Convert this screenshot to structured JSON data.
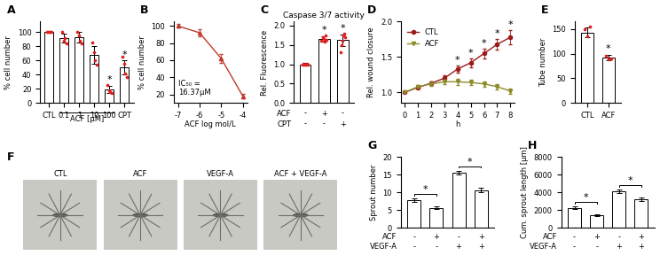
{
  "chart_data": [
    {
      "panel": "A",
      "type": "bar",
      "categories": [
        "CTL",
        "0.1",
        "1",
        "10",
        "100",
        "CPT"
      ],
      "values": [
        100,
        92,
        93,
        68,
        19,
        50
      ],
      "errors": [
        0,
        6,
        7,
        12,
        5,
        10
      ],
      "points": {
        "color": "#e02020",
        "values": [
          [
            100,
            100,
            100,
            100
          ],
          [
            100,
            88,
            92,
            84
          ],
          [
            100,
            95,
            88,
            84
          ],
          [
            85,
            72,
            60,
            54
          ],
          [
            25,
            18,
            15,
            14
          ],
          [
            65,
            55,
            42,
            37
          ]
        ]
      },
      "significance": [
        null,
        null,
        null,
        null,
        "*",
        "*"
      ],
      "color": "#ffffff",
      "ylim": [
        0,
        115
      ],
      "yticks": [
        0,
        20,
        40,
        60,
        80,
        100
      ],
      "y_label": "% cell number",
      "group_label": {
        "text": "ACF [µM]",
        "from": 1,
        "to": 4
      }
    },
    {
      "panel": "B",
      "type": "line",
      "x": [
        -7,
        -6,
        -5,
        -4
      ],
      "values": [
        100,
        92,
        62,
        18
      ],
      "errors": [
        2,
        4,
        5,
        3
      ],
      "color": "#c0392b",
      "marker": "triangle",
      "xlim": [
        -7.2,
        -3.8
      ],
      "xticks": [
        -7,
        -6,
        -5,
        -4
      ],
      "ylim": [
        10,
        105
      ],
      "yticks": [
        20,
        40,
        60,
        80,
        100
      ],
      "x_label": "ACF log mol/L",
      "y_label": "% cell number",
      "annotation": "IC₅₀ =\n16.37µM"
    },
    {
      "panel": "C",
      "type": "bar",
      "title": "Caspase 3/7 activity",
      "categories": [
        null,
        null,
        null
      ],
      "values": [
        1.0,
        1.65,
        1.62
      ],
      "errors": [
        0.03,
        0.07,
        0.15
      ],
      "points": {
        "color": "#e02020",
        "values": [
          [
            1.0,
            1.02,
            0.98,
            1.0,
            1.01,
            0.99
          ],
          [
            1.6,
            1.7,
            1.65,
            1.58,
            1.75,
            1.62
          ],
          [
            1.3,
            1.5,
            1.6,
            1.75,
            1.8,
            1.7
          ]
        ]
      },
      "significance": [
        null,
        "*",
        "*"
      ],
      "color": "#ffffff",
      "conditions": [
        {
          "name": "ACF",
          "values": [
            "-",
            "+",
            "-"
          ]
        },
        {
          "name": "CPT",
          "values": [
            "-",
            "-",
            "+"
          ]
        }
      ],
      "ylim": [
        0,
        2.1
      ],
      "yticks": [
        0.0,
        0.5,
        1.0,
        1.5,
        2.0
      ],
      "y_label": "Rel. Fluorescence"
    },
    {
      "panel": "D",
      "type": "line",
      "x": [
        0,
        1,
        2,
        3,
        4,
        5,
        6,
        7,
        8
      ],
      "series": [
        {
          "name": "CTL",
          "color": "#9b1b1b",
          "marker": "circle",
          "values": [
            1.0,
            1.07,
            1.13,
            1.2,
            1.33,
            1.42,
            1.55,
            1.68,
            1.78
          ],
          "errors": [
            0,
            0.02,
            0.03,
            0.04,
            0.05,
            0.06,
            0.07,
            0.08,
            0.1
          ],
          "significance": [
            null,
            null,
            null,
            null,
            "*",
            "*",
            "*",
            "*",
            "*"
          ]
        },
        {
          "name": "ACF",
          "color": "#8c8c2a",
          "marker": "triangle_down",
          "values": [
            1.0,
            1.08,
            1.12,
            1.15,
            1.15,
            1.14,
            1.12,
            1.08,
            1.02
          ],
          "errors": [
            0,
            0.02,
            0.03,
            0.03,
            0.04,
            0.04,
            0.04,
            0.04,
            0.04
          ]
        }
      ],
      "xlim": [
        -0.3,
        8.3
      ],
      "xticks": [
        0,
        1,
        2,
        3,
        4,
        5,
        6,
        7,
        8
      ],
      "ylim": [
        0.85,
        2.0
      ],
      "yticks": [
        1.0,
        1.5,
        2.0
      ],
      "x_label": "h",
      "y_label": "Rel. wound closure",
      "legend": "upper left"
    },
    {
      "panel": "E",
      "type": "bar",
      "categories": [
        "CTL",
        "ACF"
      ],
      "values": [
        143,
        92
      ],
      "errors": [
        10,
        6
      ],
      "points": {
        "color": "#e02020",
        "values": [
          [
            150,
            135,
            155
          ],
          [
            95,
            88,
            90
          ]
        ]
      },
      "significance": [
        null,
        "*"
      ],
      "color": "#ffffff",
      "ylim": [
        0,
        165
      ],
      "yticks": [
        0,
        50,
        100,
        150
      ],
      "y_label": "Tube number"
    },
    {
      "panel": "G",
      "type": "bar",
      "categories": [
        null,
        null,
        null,
        null
      ],
      "values": [
        7.8,
        5.6,
        15.6,
        10.6
      ],
      "errors": [
        0.5,
        0.4,
        0.6,
        0.6
      ],
      "color": "#ffffff",
      "brackets": [
        {
          "between": [
            0,
            1
          ],
          "label": "*"
        },
        {
          "between": [
            2,
            3
          ],
          "label": "*"
        }
      ],
      "conditions": [
        {
          "name": "ACF",
          "values": [
            "-",
            "+",
            "-",
            "+"
          ]
        },
        {
          "name": "VEGF-A",
          "values": [
            "-",
            "-",
            "+",
            "+"
          ]
        }
      ],
      "ylim": [
        0,
        20
      ],
      "yticks": [
        0,
        5,
        10,
        15,
        20
      ],
      "y_label": "Sprout number"
    },
    {
      "panel": "H",
      "type": "bar",
      "categories": [
        null,
        null,
        null,
        null
      ],
      "values": [
        2250,
        1400,
        4150,
        3200
      ],
      "errors": [
        150,
        100,
        200,
        200
      ],
      "color": "#ffffff",
      "brackets": [
        {
          "between": [
            0,
            1
          ],
          "label": "*"
        },
        {
          "between": [
            2,
            3
          ],
          "label": "*"
        }
      ],
      "conditions": [
        {
          "name": "ACF",
          "values": [
            "-",
            "+",
            "-",
            "+"
          ]
        },
        {
          "name": "VEGF-A",
          "values": [
            "-",
            "-",
            "+",
            "+"
          ]
        }
      ],
      "ylim": [
        0,
        8000
      ],
      "yticks": [
        0,
        2000,
        4000,
        6000,
        8000
      ],
      "y_label": "Cum. sprout length [µm]"
    }
  ],
  "image_panel": {
    "panel": "F",
    "labels": [
      "CTL",
      "ACF",
      "VEGF-A",
      "ACF + VEGF-A"
    ]
  }
}
